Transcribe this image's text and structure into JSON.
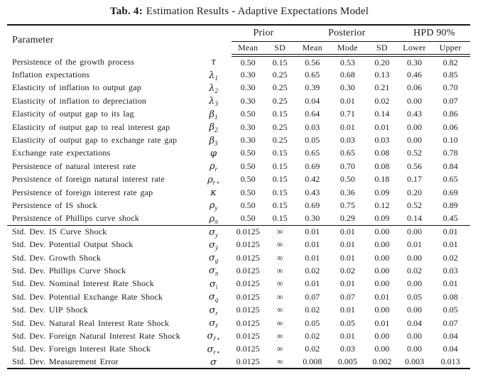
{
  "caption": {
    "label": "Tab. 4:",
    "text": "Estimation Results - Adaptive Expectations Model"
  },
  "colors": {
    "background": "#ffffff",
    "text": "#1b1b1b",
    "rule": "#151515"
  },
  "header": {
    "parameter": "Parameter",
    "groups": [
      {
        "label": "Prior"
      },
      {
        "label": "Posterior"
      },
      {
        "label": "HPD 90%"
      }
    ],
    "subcols": [
      "Mean",
      "SD",
      "Mean",
      "Mode",
      "SD",
      "Lower",
      "Upper"
    ]
  },
  "sections": [
    {
      "name": "parameters",
      "rows": [
        {
          "param": "Persistence of the growth process",
          "sym": "τ",
          "sub": "",
          "values": [
            "0.50",
            "0.15",
            "0.56",
            "0.53",
            "0.20",
            "0.30",
            "0.82"
          ]
        },
        {
          "param": "Inflation expectations",
          "sym": "λ",
          "sub": "1",
          "values": [
            "0.30",
            "0.25",
            "0.65",
            "0.68",
            "0.13",
            "0.46",
            "0.85"
          ]
        },
        {
          "param": "Elasticity of inflation to output gap",
          "sym": "λ",
          "sub": "2",
          "values": [
            "0.30",
            "0.25",
            "0.39",
            "0.30",
            "0.21",
            "0.06",
            "0.70"
          ]
        },
        {
          "param": "Elasticity of inflation to depreciation",
          "sym": "λ",
          "sub": "3",
          "values": [
            "0.30",
            "0.25",
            "0.04",
            "0.01",
            "0.02",
            "0.00",
            "0.07"
          ]
        },
        {
          "param": "Elasticity of output gap to its lag",
          "sym": "β",
          "sub": "1",
          "values": [
            "0.50",
            "0.15",
            "0.64",
            "0.71",
            "0.14",
            "0.43",
            "0.86"
          ]
        },
        {
          "param": "Elasticity of output gap to real interest gap",
          "sym": "β",
          "sub": "2",
          "values": [
            "0.30",
            "0.25",
            "0.03",
            "0.01",
            "0.01",
            "0.00",
            "0.06"
          ]
        },
        {
          "param": "Elasticity of output gap to exchange rate gap",
          "sym": "β",
          "sub": "3",
          "values": [
            "0.30",
            "0.25",
            "0.05",
            "0.03",
            "0.03",
            "0.00",
            "0.10"
          ]
        },
        {
          "param": "Exchange rate expectations",
          "sym": "φ",
          "sub": "",
          "values": [
            "0.50",
            "0.15",
            "0.65",
            "0.65",
            "0.08",
            "0.52",
            "0.78"
          ]
        },
        {
          "param": "Persistence of natural interest rate",
          "sym": "ρ",
          "sub": "r",
          "values": [
            "0.50",
            "0.15",
            "0.69",
            "0.70",
            "0.08",
            "0.56",
            "0.84"
          ]
        },
        {
          "param": "Persistence of foreign natural interest rate",
          "sym": "ρ",
          "sub": "r⋆",
          "values": [
            "0.50",
            "0.15",
            "0.42",
            "0.50",
            "0.18",
            "0.17",
            "0.65"
          ]
        },
        {
          "param": "Persistence of foreign interest rate gap",
          "sym": "κ",
          "sub": "",
          "values": [
            "0.50",
            "0.15",
            "0.43",
            "0.36",
            "0.09",
            "0.20",
            "0.69"
          ]
        },
        {
          "param": "Persistence of IS shock",
          "sym": "ρ",
          "sub": "y",
          "values": [
            "0.50",
            "0.15",
            "0.69",
            "0.75",
            "0.12",
            "0.52",
            "0.89"
          ]
        },
        {
          "param": "Persistence of Phillips curve shock",
          "sym": "ρ",
          "sub": "π",
          "values": [
            "0.50",
            "0.15",
            "0.30",
            "0.29",
            "0.09",
            "0.14",
            "0.45"
          ]
        }
      ]
    },
    {
      "name": "stddevs",
      "rows": [
        {
          "param": "Std. Dev. IS Curve Shock",
          "sym": "σ",
          "sub": "y",
          "values": [
            "0.0125",
            "∞",
            "0.01",
            "0.01",
            "0.00",
            "0.00",
            "0.01"
          ]
        },
        {
          "param": "Std. Dev. Potential Output Shock",
          "sym": "σ",
          "sub": "ȳ",
          "values": [
            "0.0125",
            "∞",
            "0.01",
            "0.01",
            "0.00",
            "0.01",
            "0.01"
          ]
        },
        {
          "param": "Std. Dev. Growth Shock",
          "sym": "σ",
          "sub": "g",
          "values": [
            "0.0125",
            "∞",
            "0.01",
            "0.01",
            "0.00",
            "0.00",
            "0.02"
          ]
        },
        {
          "param": "Std. Dev. Phillips Curve Shock",
          "sym": "σ",
          "sub": "π",
          "values": [
            "0.0125",
            "∞",
            "0.02",
            "0.02",
            "0.00",
            "0.02",
            "0.03"
          ]
        },
        {
          "param": "Std. Dev. Nominal Interest Rate Shock",
          "sym": "σ",
          "sub": "i",
          "values": [
            "0.0125",
            "∞",
            "0.01",
            "0.01",
            "0.00",
            "0.00",
            "0.01"
          ]
        },
        {
          "param": "Std. Dev. Potential Exchange Rate Shock",
          "sym": "σ",
          "sub": "q",
          "values": [
            "0.0125",
            "∞",
            "0.07",
            "0.07",
            "0.01",
            "0.05",
            "0.08"
          ]
        },
        {
          "param": "Std. Dev. UIP Shock",
          "sym": "σ",
          "sub": "r",
          "values": [
            "0.0125",
            "∞",
            "0.02",
            "0.01",
            "0.00",
            "0.00",
            "0.05"
          ]
        },
        {
          "param": "Std. Dev. Natural Real Interest Rate Shock",
          "sym": "σ",
          "sub": "r̄",
          "values": [
            "0.0125",
            "∞",
            "0.05",
            "0.05",
            "0.01",
            "0.04",
            "0.07"
          ]
        },
        {
          "param": "Std. Dev. Foreign Natural Interest Rate Shock",
          "sym": "σ",
          "sub": "r̄⋆",
          "values": [
            "0.0125",
            "∞",
            "0.02",
            "0.01",
            "0.00",
            "0.00",
            "0.04"
          ]
        },
        {
          "param": "Std. Dev. Foreign Interest Rate Shock",
          "sym": "σ",
          "sub": "r⋆",
          "values": [
            "0.0125",
            "∞",
            "0.02",
            "0.03",
            "0.00",
            "0.00",
            "0.04"
          ]
        },
        {
          "param": "Std. Dev. Measurement Error",
          "sym": "σ",
          "sub": "",
          "values": [
            "0.0125",
            "∞",
            "0.008",
            "0.005",
            "0.002",
            "0.003",
            "0.013"
          ]
        }
      ]
    }
  ]
}
